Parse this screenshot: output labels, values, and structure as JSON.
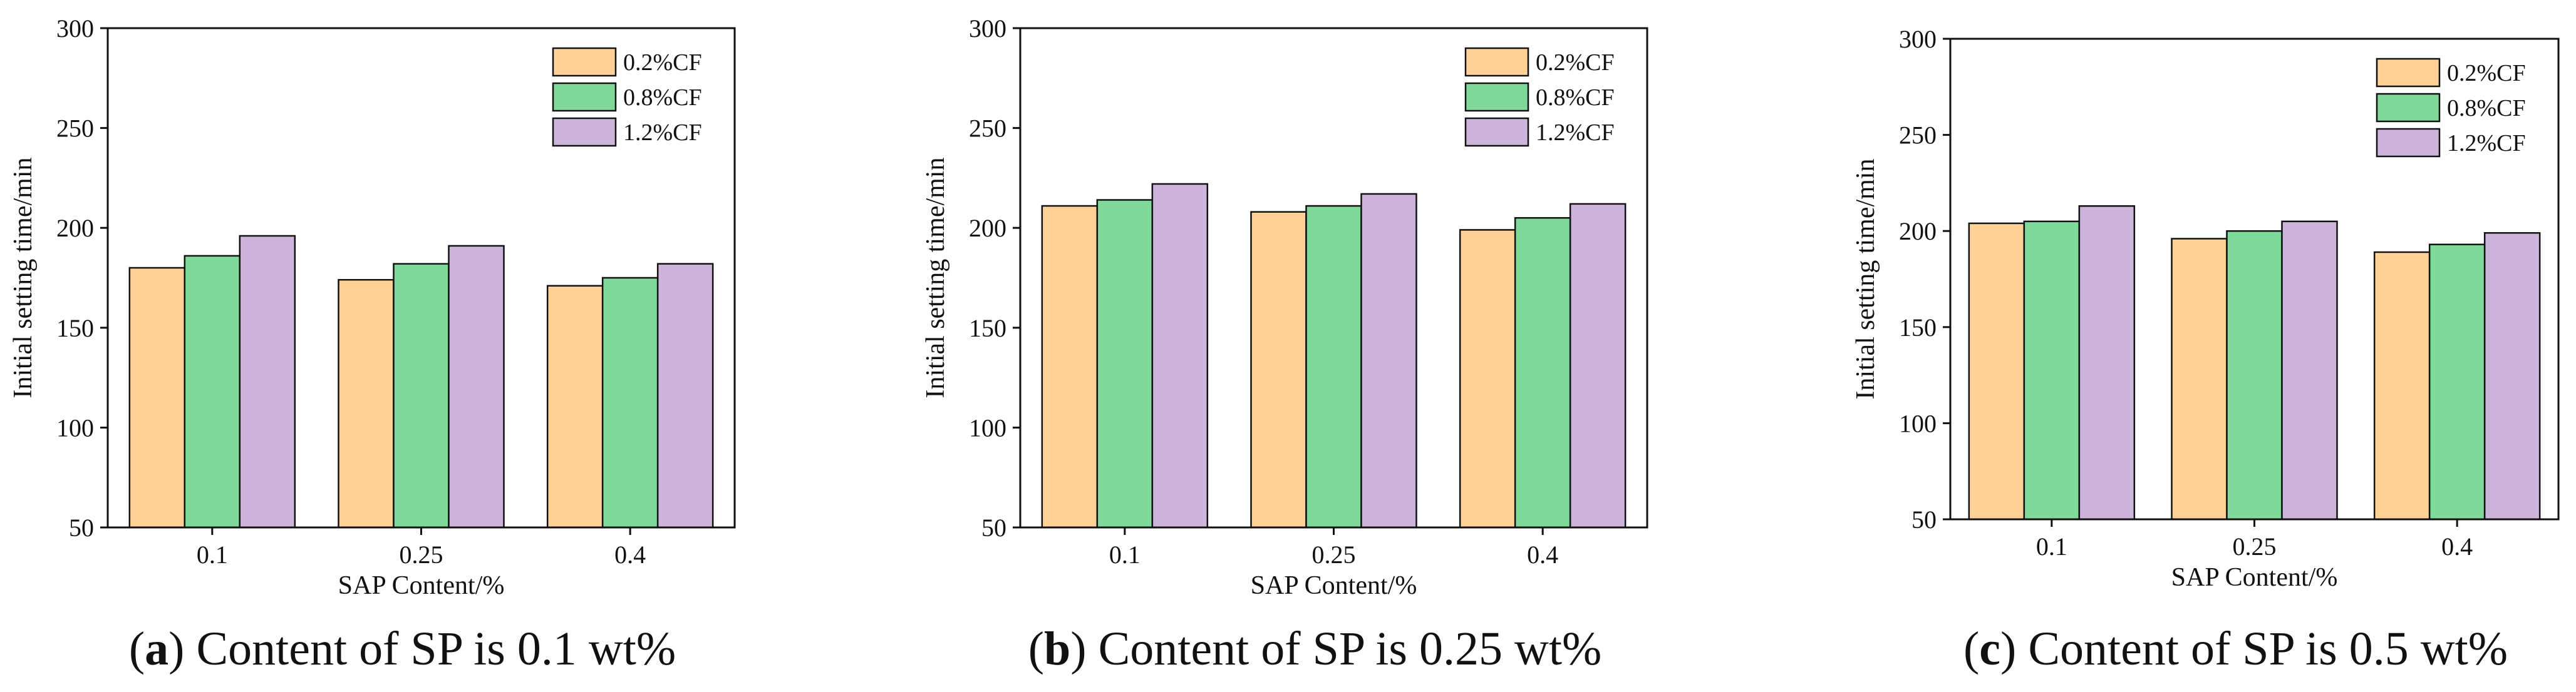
{
  "colors": {
    "series": [
      "#FFD196",
      "#7ED99A",
      "#CDB4DB"
    ],
    "stroke": "#111111"
  },
  "chart_data": [
    {
      "type": "bar",
      "panel_label": "a",
      "caption": "Content of SP is 0.1 wt%",
      "xlabel": "SAP Content/%",
      "ylabel": "Initial setting time/min",
      "categories": [
        "0.1",
        "0.25",
        "0.4"
      ],
      "ylim": [
        50,
        300
      ],
      "yticks": [
        50,
        100,
        150,
        200,
        250,
        300
      ],
      "legend_position": "top-right",
      "series": [
        {
          "name": "0.2%CF",
          "values": [
            180,
            174,
            171
          ]
        },
        {
          "name": "0.8%CF",
          "values": [
            186,
            182,
            175
          ]
        },
        {
          "name": "1.2%CF",
          "values": [
            196,
            191,
            182
          ]
        }
      ]
    },
    {
      "type": "bar",
      "panel_label": "b",
      "caption": "Content of SP is 0.25 wt%",
      "xlabel": "SAP Content/%",
      "ylabel": "Initial setting time/min",
      "categories": [
        "0.1",
        "0.25",
        "0.4"
      ],
      "ylim": [
        50,
        300
      ],
      "yticks": [
        50,
        100,
        150,
        200,
        250,
        300
      ],
      "legend_position": "top-right",
      "series": [
        {
          "name": "0.2%CF",
          "values": [
            211,
            208,
            199
          ]
        },
        {
          "name": "0.8%CF",
          "values": [
            214,
            211,
            205
          ]
        },
        {
          "name": "1.2%CF",
          "values": [
            222,
            217,
            212
          ]
        }
      ]
    },
    {
      "type": "bar",
      "panel_label": "c",
      "caption": "Content of SP is 0.5 wt%",
      "xlabel": "SAP Content/%",
      "ylabel": "Initial setting time/min",
      "categories": [
        "0.1",
        "0.25",
        "0.4"
      ],
      "ylim": [
        50,
        300
      ],
      "yticks": [
        50,
        100,
        150,
        200,
        250,
        300
      ],
      "legend_position": "top-right",
      "series": [
        {
          "name": "0.2%CF",
          "values": [
            204,
            196,
            189
          ]
        },
        {
          "name": "0.8%CF",
          "values": [
            205,
            200,
            193
          ]
        },
        {
          "name": "1.2%CF",
          "values": [
            213,
            205,
            199
          ]
        }
      ]
    }
  ]
}
